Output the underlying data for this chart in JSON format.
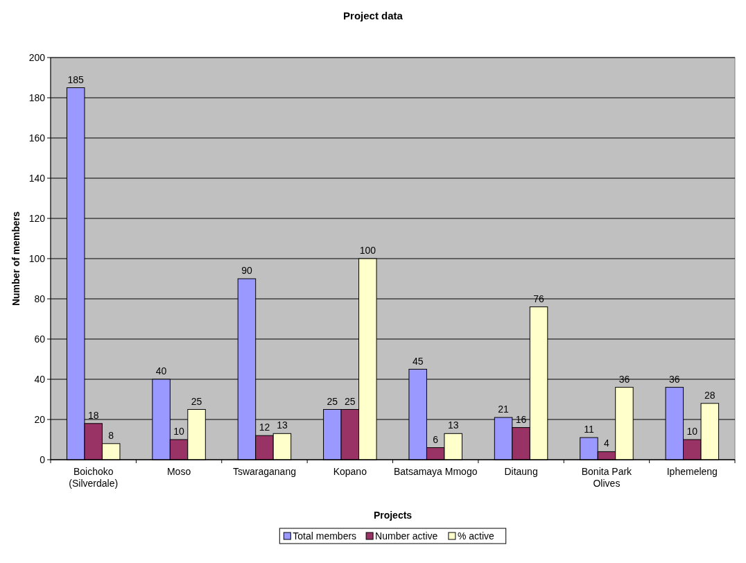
{
  "chart_data": {
    "type": "bar",
    "title": "Project data",
    "xlabel": "Projects",
    "ylabel": "Number of members",
    "categories": [
      "Boichoko (Silverdale)",
      "Moso",
      "Tswaraganang",
      "Kopano",
      "Batsamaya Mmogo",
      "Ditaung",
      "Bonita Park Olives",
      "Iphemeleng"
    ],
    "series": [
      {
        "name": "Total members",
        "color": "#9999ff",
        "values": [
          185,
          40,
          90,
          25,
          45,
          21,
          11,
          36
        ]
      },
      {
        "name": "Number active",
        "color": "#993366",
        "values": [
          18,
          10,
          12,
          25,
          6,
          16,
          4,
          10
        ]
      },
      {
        "name": "% active",
        "color": "#ffffcc",
        "values": [
          8,
          25,
          13,
          100,
          13,
          76,
          36,
          28
        ]
      }
    ],
    "ylim": [
      0,
      200
    ],
    "yticks": [
      0,
      20,
      40,
      60,
      80,
      100,
      120,
      140,
      160,
      180,
      200
    ],
    "grid": "y",
    "legend": "bottom",
    "data_labels": true
  }
}
